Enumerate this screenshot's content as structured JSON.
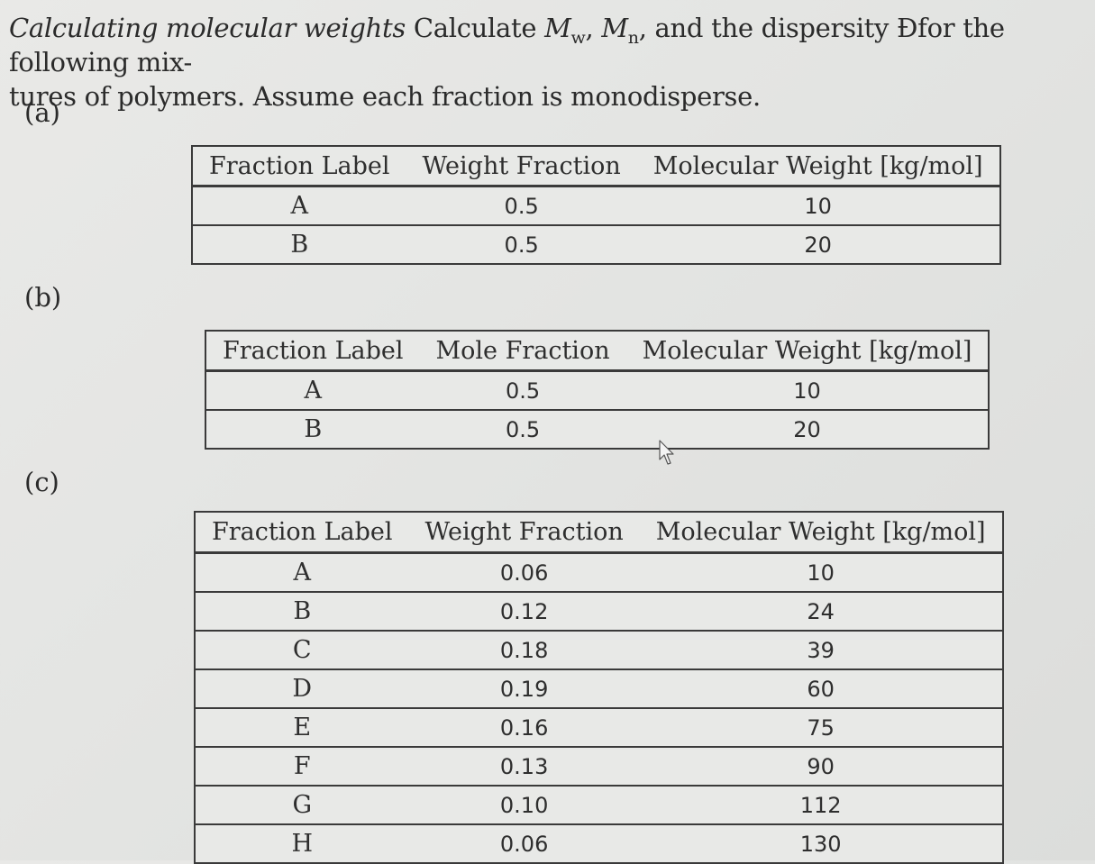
{
  "problem": {
    "heading": "Calculating molecular weights",
    "text_1": "Calculate",
    "mw_symbol": "M",
    "mw_sub": "w",
    "comma": ",",
    "mn_symbol": "M",
    "mn_sub": "n",
    "text_2": ", and the dispersity Đfor the following mix-",
    "text_3": "tures of polymers. Assume each fraction is monodisperse."
  },
  "parts": {
    "a": {
      "label": "(a)",
      "headers": [
        "Fraction Label",
        "Weight Fraction",
        "Molecular Weight [kg/mol]"
      ],
      "rows": [
        [
          "A",
          "0.5",
          "10"
        ],
        [
          "B",
          "0.5",
          "20"
        ]
      ]
    },
    "b": {
      "label": "(b)",
      "headers": [
        "Fraction Label",
        "Mole Fraction",
        "Molecular Weight [kg/mol]"
      ],
      "rows": [
        [
          "A",
          "0.5",
          "10"
        ],
        [
          "B",
          "0.5",
          "20"
        ]
      ]
    },
    "c": {
      "label": "(c)",
      "headers": [
        "Fraction Label",
        "Weight Fraction",
        "Molecular Weight [kg/mol]"
      ],
      "rows": [
        [
          "A",
          "0.06",
          "10"
        ],
        [
          "B",
          "0.12",
          "24"
        ],
        [
          "C",
          "0.18",
          "39"
        ],
        [
          "D",
          "0.19",
          "60"
        ],
        [
          "E",
          "0.16",
          "75"
        ],
        [
          "F",
          "0.13",
          "90"
        ],
        [
          "G",
          "0.10",
          "112"
        ],
        [
          "H",
          "0.06",
          "130"
        ]
      ]
    }
  },
  "icons": {
    "cursor": "mouse-pointer-icon"
  }
}
